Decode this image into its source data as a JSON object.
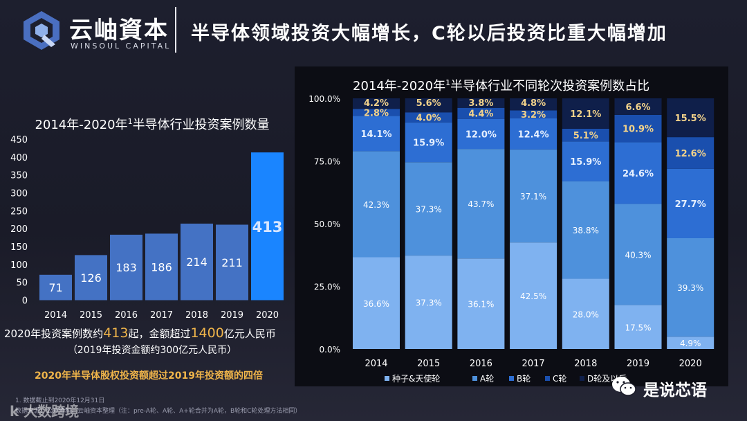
{
  "header": {
    "logo_cn": "云岫資本",
    "logo_en": "WINSOUL CAPITAL",
    "title": "半导体领域投资大幅增长，C轮以后投资比重大幅增加"
  },
  "left_chart_title": {
    "main": "2014年-2020年",
    "sup": "1",
    "rest": "半导体行业投资案例数量"
  },
  "right_chart_title": {
    "main": "2014年-2020年",
    "sup": "1",
    "rest": "半导体行业不同轮次投资案例数占比"
  },
  "notes": {
    "line1_pre": "2020年投资案例数约",
    "line1_num1": "413",
    "line1_mid": "起，金额超过",
    "line1_num2": "1400",
    "line1_post": "亿元人民币",
    "line2": "（2019年投资金额约300亿元人民币）",
    "line3": "2020年半导体股权投资额超过2019年投资额的四倍"
  },
  "footnotes": {
    "f1": "1. 数据截止到2020年12月31日",
    "f2": "数据来源：公开资料，云岫资本整理（注：pre-A轮、A轮、A+轮合并为A轮，B轮和C轮处理方法相同）"
  },
  "watermark": {
    "left": "k 大数跨境",
    "right": "是说芯语"
  },
  "colors": {
    "bar": "#4472c4",
    "bar_highlight": "#1a85ff",
    "highlight_label": "#d8e6ff",
    "seed": "#7fb2f0",
    "a": "#4e91dc",
    "b": "#2d6ed3",
    "c": "#1a4fae",
    "d": "#0f1f4a"
  },
  "chart_data": [
    {
      "type": "bar",
      "title": "2014年-2020年1半导体行业投资案例数量",
      "categories": [
        "2014",
        "2015",
        "2016",
        "2017",
        "2018",
        "2019",
        "2020"
      ],
      "values": [
        71,
        126,
        183,
        186,
        214,
        211,
        413
      ],
      "ylim": [
        0,
        450
      ],
      "yticks": [
        0,
        50,
        100,
        150,
        200,
        250,
        300,
        350,
        400,
        450
      ],
      "xlabel": "",
      "ylabel": "",
      "grid": false
    },
    {
      "type": "bar",
      "stacked": true,
      "title": "2014年-2020年1半导体行业不同轮次投资案例数占比",
      "categories": [
        "2014",
        "2015",
        "2016",
        "2017",
        "2018",
        "2019",
        "2020"
      ],
      "yticks": [
        "0.0%",
        "25.0%",
        "50.0%",
        "75.0%",
        "100.0%"
      ],
      "ylim": [
        0,
        100
      ],
      "series": [
        {
          "name": "种子&天使轮",
          "values": [
            36.6,
            37.3,
            36.1,
            42.5,
            28.0,
            17.5,
            4.9
          ],
          "labels": [
            "36.6%",
            "37.3%",
            "36.1%",
            "42.5%",
            "28.0%",
            "17.5%",
            "4.9%"
          ]
        },
        {
          "name": "A轮",
          "values": [
            42.3,
            37.3,
            43.7,
            37.1,
            38.8,
            40.3,
            39.3
          ],
          "labels": [
            "42.3%",
            "37.3%",
            "43.7%",
            "37.1%",
            "38.8%",
            "40.3%",
            "39.3%"
          ]
        },
        {
          "name": "B轮",
          "values": [
            14.1,
            15.9,
            12.0,
            12.4,
            15.9,
            24.6,
            27.7
          ],
          "labels": [
            "14.1%",
            "15.9%",
            "12.0%",
            "12.4%",
            "15.9%",
            "24.6%",
            "27.7%"
          ]
        },
        {
          "name": "C轮",
          "values": [
            2.8,
            4.0,
            4.4,
            3.2,
            5.1,
            10.9,
            12.6
          ],
          "labels": [
            "2.8%",
            "4.0%",
            "4.4%",
            "3.2%",
            "5.1%",
            "10.9%",
            "12.6%"
          ]
        },
        {
          "name": "D轮及以后",
          "values": [
            4.2,
            5.6,
            3.8,
            4.8,
            12.1,
            6.6,
            15.5
          ],
          "labels": [
            "4.2%",
            "5.6%",
            "3.8%",
            "4.8%",
            "12.1%",
            "6.6%",
            "15.5%"
          ]
        }
      ],
      "legend": "bottom"
    }
  ]
}
